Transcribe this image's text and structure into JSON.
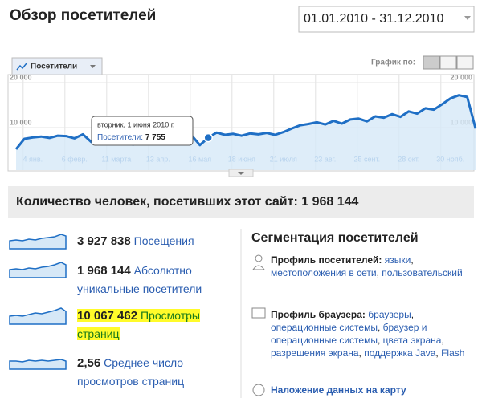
{
  "header": {
    "title": "Обзор посетителей",
    "date_range": "01.01.2010 - 31.12.2010"
  },
  "chart_panel": {
    "metric_selector": "Посетители",
    "view_label": "График по:"
  },
  "chart_data": {
    "type": "line",
    "categories": [
      null,
      null,
      "4 янв.",
      null,
      null,
      null,
      null,
      "6 февр.",
      null,
      null,
      null,
      null,
      "11 марта",
      null,
      null,
      null,
      null,
      "13 апр.",
      null,
      null,
      null,
      null,
      "16 мая",
      null,
      null,
      null,
      null,
      "18 июня",
      null,
      null,
      null,
      null,
      "21 июля",
      null,
      null,
      null,
      null,
      "23 авг.",
      null,
      null,
      null,
      null,
      "25 сент.",
      null,
      null,
      null,
      null,
      "28 окт.",
      null,
      null,
      null,
      null,
      "30 нояб.",
      null,
      null,
      null
    ],
    "series": [
      {
        "name": "Посетители",
        "color": "#1f6fc5",
        "values": [
          5200,
          7500,
          7800,
          8000,
          7700,
          8200,
          8100,
          7600,
          8500,
          6800,
          8300,
          8100,
          7800,
          8200,
          6200,
          7900,
          8300,
          8000,
          7700,
          8600,
          8200,
          8300,
          6100,
          7755,
          8900,
          8400,
          8600,
          8200,
          8700,
          8500,
          8800,
          8400,
          9000,
          9800,
          10500,
          10800,
          11200,
          10700,
          11500,
          10900,
          11800,
          12000,
          11400,
          12500,
          12200,
          13000,
          12400,
          13600,
          13100,
          14300,
          14000,
          15200,
          16500,
          17200,
          16800,
          9800
        ]
      }
    ],
    "ylim": [
      0,
      20000
    ],
    "yticks": [
      {
        "value": 10000,
        "label": "10 000"
      },
      {
        "value": 20000,
        "label": "20 000"
      }
    ],
    "grid": true,
    "tooltip": {
      "date": "вторник, 1 июня 2010 г.",
      "label": "Посетители:",
      "value": 7755,
      "value_label": "7 755"
    }
  },
  "summary": {
    "label": "Количество человек, посетивших этот сайт:",
    "value": "1 968 144"
  },
  "metrics": [
    {
      "value": "3 927 838",
      "label": "Посещения"
    },
    {
      "value": "1 968 144",
      "label": "Абсолютно уникальные посетители"
    },
    {
      "value": "10 067 462",
      "label": "Просмотры страниц"
    },
    {
      "value": "2,56",
      "label": "Среднее число просмотров страниц"
    }
  ],
  "segmentation": {
    "title": "Сегментация посетителей",
    "separator": ",",
    "sections": [
      {
        "label": "Профиль посетителей:",
        "links": [
          "языки",
          "местоположения в сети",
          "пользовательский"
        ]
      },
      {
        "label": "Профиль браузера:",
        "links": [
          "браузеры",
          "операционные системы",
          "браузер и операционные системы",
          "цвета экрана",
          "разрешения экрана",
          "поддержка Java",
          "Flash"
        ]
      },
      {
        "label": "Наложение данных на карту",
        "links": []
      }
    ]
  }
}
